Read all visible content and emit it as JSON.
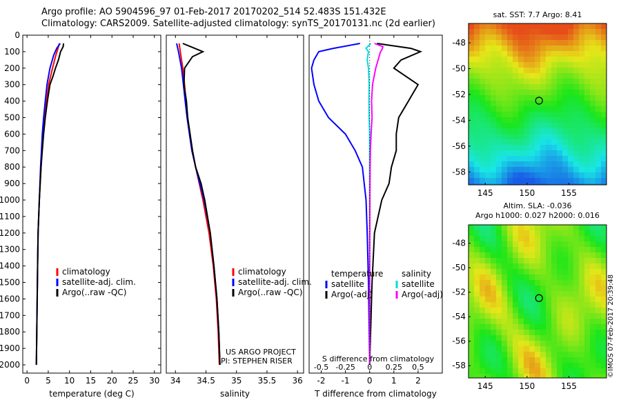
{
  "header": {
    "line1": "Argo profile: AO 5904596_97 01-Feb-2017 20170202_514 52.483S 151.432E",
    "line2": "Climatology: CARS2009. Satellite-adjusted climatology: synTS_20170131.nc (2d earlier)"
  },
  "colors": {
    "climatology": "#ff0000",
    "satellite": "#0000ff",
    "argo": "#000000",
    "sal_satellite": "#00dddd",
    "sal_argo": "#ff00ff"
  },
  "watermark": "©IMOS 07-Feb-2017 20:39:48",
  "project": {
    "line1": "US ARGO PROJECT",
    "line2": "PI: STEPHEN RISER"
  },
  "chart_data": [
    {
      "id": "temperature",
      "type": "line",
      "xlabel": "temperature (deg C)",
      "ylabel": "",
      "xlim": [
        -1,
        31.5
      ],
      "ylim": [
        2050,
        0
      ],
      "xticks": [
        0,
        5,
        10,
        15,
        20,
        25,
        30
      ],
      "yticks": [
        0,
        100,
        200,
        300,
        400,
        500,
        600,
        700,
        800,
        900,
        1000,
        1100,
        1200,
        1300,
        1400,
        1500,
        1600,
        1700,
        1800,
        1900,
        2000
      ],
      "legend": [
        "climatology",
        "satellite-adj. clim.",
        "Argo(..raw -QC)"
      ],
      "series": [
        {
          "name": "climatology",
          "color": "#ff0000",
          "depth": [
            50,
            80,
            120,
            200,
            300,
            400,
            500,
            600,
            700,
            800,
            1000,
            1200,
            1400,
            1600,
            1800,
            2000
          ],
          "values": [
            7.6,
            7.3,
            6.8,
            6.0,
            5.1,
            4.6,
            4.2,
            3.8,
            3.5,
            3.3,
            2.9,
            2.6,
            2.5,
            2.4,
            2.3,
            2.2
          ]
        },
        {
          "name": "satellite-adj. clim.",
          "color": "#0000ff",
          "depth": [
            50,
            80,
            120,
            200,
            300,
            400,
            500,
            600,
            700,
            800,
            1000,
            1200,
            1400,
            1600,
            1800,
            2000
          ],
          "values": [
            7.8,
            7.0,
            6.3,
            5.4,
            4.7,
            4.3,
            3.9,
            3.6,
            3.4,
            3.2,
            2.9,
            2.6,
            2.5,
            2.4,
            2.3,
            2.2
          ]
        },
        {
          "name": "Argo(..raw -QC)",
          "color": "#000000",
          "depth": [
            50,
            70,
            100,
            150,
            200,
            250,
            300,
            400,
            500,
            600,
            700,
            800,
            900,
            1000,
            1200,
            1400,
            1600,
            1800,
            2000
          ],
          "values": [
            8.6,
            8.5,
            7.9,
            7.4,
            6.7,
            6.1,
            5.4,
            4.8,
            4.3,
            3.9,
            3.6,
            3.3,
            3.1,
            2.9,
            2.6,
            2.5,
            2.4,
            2.3,
            2.2
          ]
        }
      ]
    },
    {
      "id": "salinity",
      "type": "line",
      "xlabel": "salinity",
      "ylabel": "",
      "xlim": [
        33.85,
        36.1
      ],
      "ylim": [
        2050,
        0
      ],
      "xticks": [
        34,
        34.5,
        35,
        35.5,
        36
      ],
      "legend": [
        "climatology",
        "satellite-adj. clim.",
        "Argo(..raw -QC)"
      ],
      "series": [
        {
          "name": "climatology",
          "color": "#ff0000",
          "depth": [
            50,
            100,
            200,
            300,
            400,
            500,
            600,
            700,
            800,
            900,
            1000,
            1200,
            1400,
            1600,
            1800,
            2000
          ],
          "values": [
            34.06,
            34.08,
            34.12,
            34.15,
            34.17,
            34.2,
            34.23,
            34.27,
            34.33,
            34.39,
            34.45,
            34.55,
            34.62,
            34.67,
            34.7,
            34.72
          ]
        },
        {
          "name": "satellite-adj. clim.",
          "color": "#0000ff",
          "depth": [
            50,
            100,
            200,
            300,
            400,
            500,
            600,
            700,
            800,
            900,
            1000,
            1200,
            1400,
            1600,
            1800,
            2000
          ],
          "values": [
            34.02,
            34.05,
            34.1,
            34.13,
            34.16,
            34.19,
            34.23,
            34.27,
            34.33,
            34.4,
            34.47,
            34.57,
            34.63,
            34.68,
            34.71,
            34.73
          ]
        },
        {
          "name": "Argo(..raw -QC)",
          "color": "#000000",
          "depth": [
            50,
            70,
            100,
            130,
            200,
            300,
            400,
            500,
            600,
            700,
            800,
            900,
            1000,
            1200,
            1400,
            1600,
            1800,
            2000
          ],
          "values": [
            34.12,
            34.25,
            34.45,
            34.28,
            34.15,
            34.14,
            34.18,
            34.2,
            34.24,
            34.28,
            34.33,
            34.42,
            34.48,
            34.57,
            34.63,
            34.68,
            34.71,
            34.73
          ]
        }
      ]
    },
    {
      "id": "difference",
      "type": "line",
      "xlabel": "T difference from climatology",
      "xlabel_top": "S difference from climatology",
      "xlim": [
        -2.5,
        3
      ],
      "ylim": [
        2050,
        0
      ],
      "xticks": [
        -2,
        -1,
        0,
        1,
        2
      ],
      "xticks_top": [
        -0.5,
        -0.25,
        0,
        0.25,
        0.5
      ],
      "legend_temperature": {
        "title": "temperature",
        "items": [
          "satellite",
          "Argo(-adj)"
        ]
      },
      "legend_salinity": {
        "title": "salinity",
        "items": [
          "satellite",
          "Argo(-adj)"
        ]
      },
      "series": [
        {
          "name": "T satellite",
          "color": "#0000ff",
          "depth": [
            50,
            80,
            100,
            150,
            200,
            300,
            400,
            500,
            600,
            700,
            800,
            1000,
            1200,
            1500,
            2000
          ],
          "values": [
            -0.4,
            -1.5,
            -2.1,
            -2.3,
            -2.4,
            -2.3,
            -2.1,
            -1.7,
            -1.0,
            -0.6,
            -0.3,
            -0.15,
            -0.1,
            -0.05,
            0
          ]
        },
        {
          "name": "T Argo(-adj)",
          "color": "#000000",
          "depth": [
            50,
            80,
            100,
            150,
            200,
            300,
            400,
            500,
            600,
            700,
            800,
            900,
            1000,
            1200,
            1500,
            2000
          ],
          "values": [
            0.3,
            1.7,
            2.1,
            1.3,
            1.0,
            2.0,
            1.6,
            1.2,
            1.1,
            1.1,
            0.9,
            0.8,
            0.5,
            0.2,
            0.1,
            0
          ]
        },
        {
          "name": "S satellite",
          "color": "#00dddd",
          "depth": [
            50,
            80,
            100,
            150,
            200,
            300,
            400,
            500,
            600,
            700,
            1000,
            1500,
            2000
          ],
          "values": [
            0.05,
            -0.15,
            -0.05,
            -0.1,
            -0.05,
            -0.02,
            -0.03,
            -0.02,
            0.0,
            0.0,
            0.0,
            0.0,
            0.0
          ]
        },
        {
          "name": "S Argo(-adj)",
          "color": "#ff00ff",
          "depth": [
            50,
            70,
            90,
            100,
            150,
            200,
            300,
            400,
            500,
            600,
            700,
            800,
            1000,
            1500,
            2000
          ],
          "values": [
            0.2,
            0.55,
            0.5,
            0.45,
            0.35,
            0.25,
            0.12,
            0.08,
            0.1,
            0.06,
            0.03,
            0.02,
            0.01,
            0.0,
            0.0
          ]
        }
      ]
    },
    {
      "id": "sst_map",
      "type": "heatmap",
      "title": "sat. SST: 7.7  Argo: 8.41",
      "xticks": [
        145,
        150,
        155
      ],
      "yticks": [
        -48,
        -50,
        -52,
        -54,
        -56,
        -58
      ],
      "xlim": [
        143,
        159.5
      ],
      "ylim": [
        -59,
        -46.5
      ],
      "marker": {
        "lon": 151.432,
        "lat": -52.483
      }
    },
    {
      "id": "sla_map",
      "type": "heatmap",
      "title": "Altim. SLA: -0.036",
      "subtitle": "Argo h1000: 0.027 h2000: 0.016",
      "xticks": [
        145,
        150,
        155
      ],
      "yticks": [
        -48,
        -50,
        -52,
        -54,
        -56,
        -58
      ],
      "xlim": [
        143,
        159.5
      ],
      "ylim": [
        -59,
        -46.5
      ],
      "marker": {
        "lon": 151.432,
        "lat": -52.483
      }
    }
  ]
}
